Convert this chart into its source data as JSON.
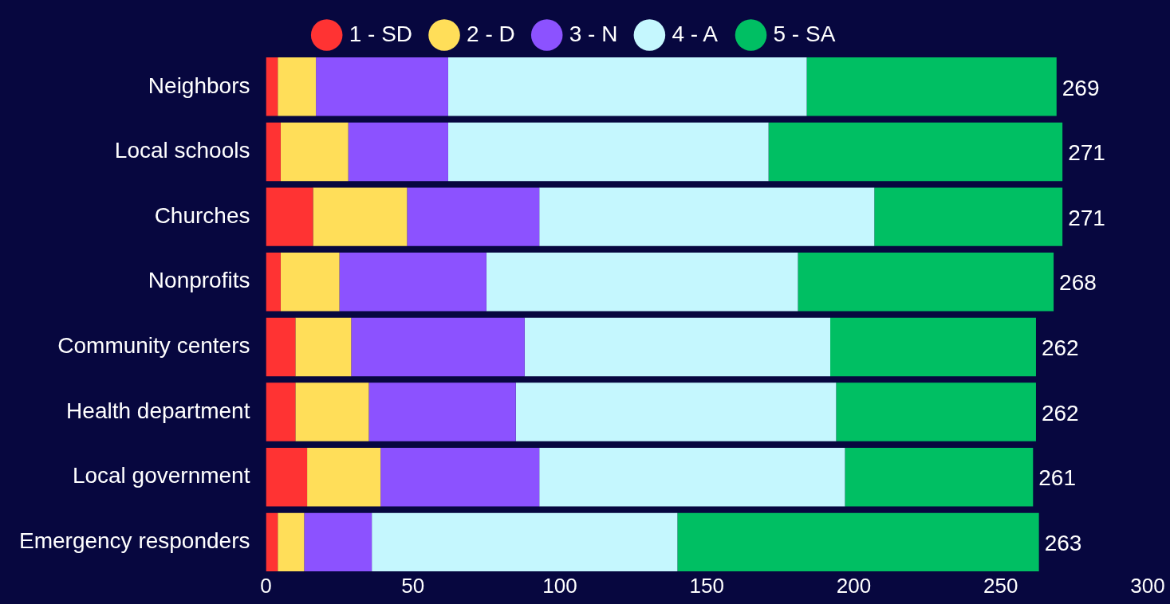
{
  "chart_data": {
    "type": "bar",
    "orientation": "horizontal",
    "stacked": true,
    "categories": [
      "Neighbors",
      "Local schools",
      "Churches",
      "Nonprofits",
      "Community centers",
      "Health department",
      "Local government",
      "Emergency responders"
    ],
    "series": [
      {
        "name": "1 - SD",
        "color": "#ff3333",
        "values": [
          4,
          5,
          16,
          5,
          10,
          10,
          14,
          4
        ]
      },
      {
        "name": "2 - D",
        "color": "#ffde59",
        "values": [
          13,
          23,
          32,
          20,
          19,
          25,
          25,
          9
        ]
      },
      {
        "name": "3 - N",
        "color": "#8c52ff",
        "values": [
          45,
          34,
          45,
          50,
          59,
          50,
          54,
          23
        ]
      },
      {
        "name": "4 - A",
        "color": "#c5f7fe",
        "values": [
          122,
          109,
          114,
          106,
          104,
          109,
          104,
          104
        ]
      },
      {
        "name": "5 - SA",
        "color": "#00bf63",
        "values": [
          85,
          100,
          64,
          87,
          70,
          68,
          64,
          123
        ]
      }
    ],
    "totals": [
      "269",
      "271",
      "271",
      "268",
      "262",
      "262",
      "261",
      "263"
    ],
    "xlim": [
      0,
      300
    ],
    "xticks": [
      0,
      50,
      100,
      150,
      200,
      250,
      300
    ],
    "grid": false,
    "legend": "top"
  }
}
